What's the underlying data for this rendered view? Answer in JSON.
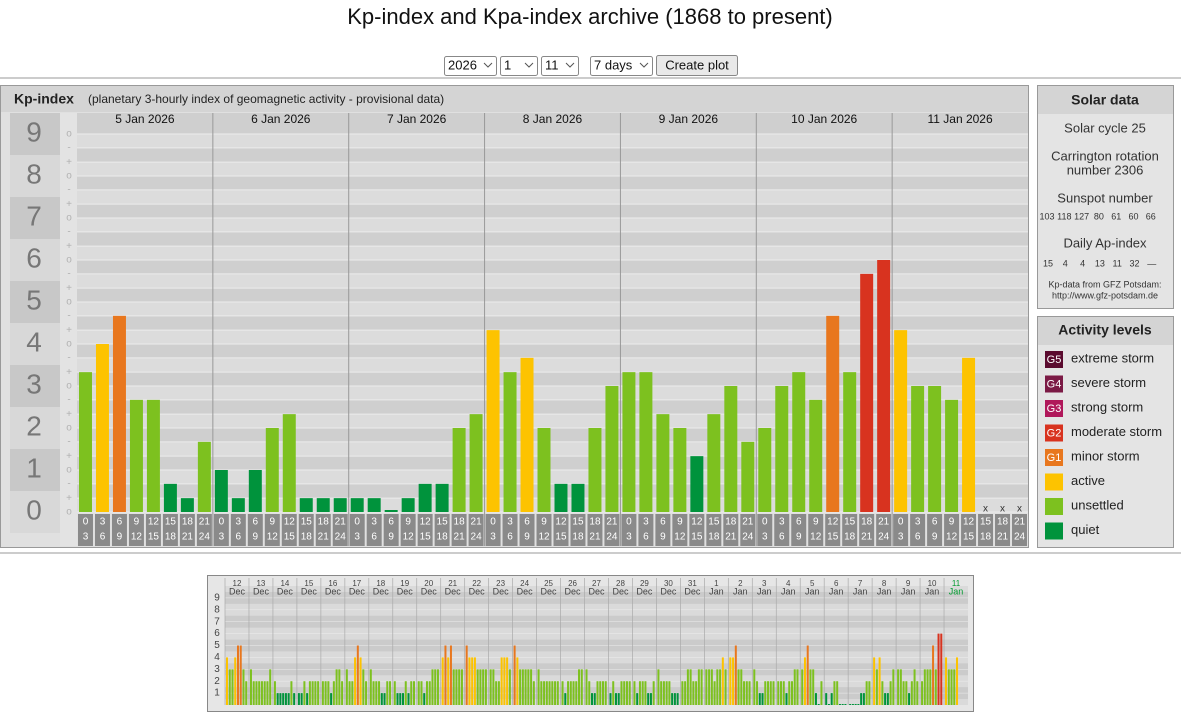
{
  "page": {
    "title": "Kp-index and Kpa-index archive (1868 to present)",
    "controls": {
      "year": "2026",
      "month": "1",
      "day": "11",
      "span": "7 days",
      "button": "Create plot"
    }
  },
  "chart_data": [
    {
      "type": "bar",
      "title": "Kp-index",
      "subtitle": "(planetary 3-hourly index of geomagnetic activity - provisional data)",
      "days": [
        "5 Jan 2026",
        "6 Jan 2026",
        "7 Jan 2026",
        "8 Jan 2026",
        "9 Jan 2026",
        "10 Jan 2026",
        "11 Jan 2026"
      ],
      "hours": [
        [
          "0",
          "3"
        ],
        [
          "3",
          "6"
        ],
        [
          "6",
          "9"
        ],
        [
          "9",
          "12"
        ],
        [
          "12",
          "15"
        ],
        [
          "15",
          "18"
        ],
        [
          "18",
          "21"
        ],
        [
          "21",
          "24"
        ]
      ],
      "values": [
        [
          3.33,
          4,
          4.67,
          2.67,
          2.67,
          0.67,
          0.33,
          1.67
        ],
        [
          1,
          0.33,
          1,
          2,
          2.33,
          0.33,
          0.33,
          0.33
        ],
        [
          0.33,
          0.33,
          0,
          0.33,
          0.67,
          0.67,
          2,
          2.33
        ],
        [
          4.33,
          3.33,
          3.67,
          2,
          0.67,
          0.67,
          2,
          3
        ],
        [
          3.33,
          3.33,
          2.33,
          2,
          1.33,
          2.33,
          3,
          1.67
        ],
        [
          2,
          3,
          3.33,
          2.67,
          4.67,
          3.33,
          5.67,
          6
        ],
        [
          4.33,
          3,
          3,
          2.67,
          3.67,
          null,
          null,
          null
        ]
      ],
      "colors": [
        [
          "#7dc11f",
          "#fdc300",
          "#e8771e",
          "#7dc11f",
          "#7dc11f",
          "#00933c",
          "#00933c",
          "#7dc11f"
        ],
        [
          "#00933c",
          "#00933c",
          "#00933c",
          "#7dc11f",
          "#7dc11f",
          "#00933c",
          "#00933c",
          "#00933c"
        ],
        [
          "#00933c",
          "#00933c",
          "#00933c",
          "#00933c",
          "#00933c",
          "#00933c",
          "#7dc11f",
          "#7dc11f"
        ],
        [
          "#fdc300",
          "#7dc11f",
          "#fdc300",
          "#7dc11f",
          "#00933c",
          "#00933c",
          "#7dc11f",
          "#7dc11f"
        ],
        [
          "#7dc11f",
          "#7dc11f",
          "#7dc11f",
          "#7dc11f",
          "#00933c",
          "#7dc11f",
          "#7dc11f",
          "#7dc11f"
        ],
        [
          "#7dc11f",
          "#7dc11f",
          "#7dc11f",
          "#7dc11f",
          "#e8771e",
          "#7dc11f",
          "#d8331f",
          "#d8331f"
        ],
        [
          "#fdc300",
          "#7dc11f",
          "#7dc11f",
          "#7dc11f",
          "#fdc300",
          null,
          null,
          null
        ]
      ],
      "missing_label": "x",
      "ylim": [
        0,
        9.5
      ],
      "yticks": [
        0,
        1,
        2,
        3,
        4,
        5,
        6,
        7,
        8,
        9
      ],
      "yminor": [
        {
          "value": 0,
          "label": "o"
        },
        {
          "value": 0.33,
          "label": "+"
        },
        {
          "value": 0.67,
          "label": "-"
        },
        {
          "value": 1,
          "label": "o"
        },
        {
          "value": 1.33,
          "label": "+"
        },
        {
          "value": 1.67,
          "label": "-"
        },
        {
          "value": 2,
          "label": "o"
        },
        {
          "value": 2.33,
          "label": "+"
        },
        {
          "value": 2.67,
          "label": "-"
        },
        {
          "value": 3,
          "label": "o"
        },
        {
          "value": 3.33,
          "label": "+"
        },
        {
          "value": 3.67,
          "label": "-"
        },
        {
          "value": 4,
          "label": "o"
        },
        {
          "value": 4.33,
          "label": "+"
        },
        {
          "value": 4.67,
          "label": "-"
        },
        {
          "value": 5,
          "label": "o"
        },
        {
          "value": 5.33,
          "label": "+"
        },
        {
          "value": 5.67,
          "label": "-"
        },
        {
          "value": 6,
          "label": "o"
        },
        {
          "value": 6.33,
          "label": "+"
        },
        {
          "value": 6.67,
          "label": "-"
        },
        {
          "value": 7,
          "label": "o"
        },
        {
          "value": 7.33,
          "label": "+"
        },
        {
          "value": 7.67,
          "label": "-"
        },
        {
          "value": 8,
          "label": "o"
        },
        {
          "value": 8.33,
          "label": "+"
        },
        {
          "value": 8.67,
          "label": "-"
        },
        {
          "value": 9,
          "label": "o"
        }
      ],
      "grid": true
    },
    {
      "type": "bar",
      "days": [
        [
          "12",
          "Dec"
        ],
        [
          "13",
          "Dec"
        ],
        [
          "14",
          "Dec"
        ],
        [
          "15",
          "Dec"
        ],
        [
          "16",
          "Dec"
        ],
        [
          "17",
          "Dec"
        ],
        [
          "18",
          "Dec"
        ],
        [
          "19",
          "Dec"
        ],
        [
          "20",
          "Dec"
        ],
        [
          "21",
          "Dec"
        ],
        [
          "22",
          "Dec"
        ],
        [
          "23",
          "Dec"
        ],
        [
          "24",
          "Dec"
        ],
        [
          "25",
          "Dec"
        ],
        [
          "26",
          "Dec"
        ],
        [
          "27",
          "Dec"
        ],
        [
          "28",
          "Dec"
        ],
        [
          "29",
          "Dec"
        ],
        [
          "30",
          "Dec"
        ],
        [
          "31",
          "Dec"
        ],
        [
          "1",
          "Jan"
        ],
        [
          "2",
          "Jan"
        ],
        [
          "3",
          "Jan"
        ],
        [
          "4",
          "Jan"
        ],
        [
          "5",
          "Jan"
        ],
        [
          "6",
          "Jan"
        ],
        [
          "7",
          "Jan"
        ],
        [
          "8",
          "Jan"
        ],
        [
          "9",
          "Jan"
        ],
        [
          "10",
          "Jan"
        ],
        [
          "11",
          "Jan"
        ]
      ],
      "values": [
        [
          4,
          3,
          3,
          4,
          5,
          5,
          3,
          2
        ],
        [
          3,
          2,
          2,
          2,
          2,
          2,
          2,
          3
        ],
        [
          2,
          1,
          1,
          1,
          1,
          1,
          2,
          1
        ],
        [
          1,
          1,
          2,
          1,
          2,
          2,
          2,
          2
        ],
        [
          2,
          2,
          2,
          1,
          2,
          3,
          3,
          2
        ],
        [
          3,
          2,
          2,
          4,
          5,
          4,
          3,
          2
        ],
        [
          3,
          2,
          2,
          2,
          1,
          1,
          2,
          2
        ],
        [
          2,
          1,
          1,
          1,
          2,
          1,
          2,
          2
        ],
        [
          2,
          2,
          1,
          2,
          2,
          3,
          3,
          3
        ],
        [
          4,
          5,
          4,
          5,
          3,
          3,
          3,
          3
        ],
        [
          5,
          4,
          4,
          4,
          3,
          3,
          3,
          3
        ],
        [
          3,
          3,
          2,
          2,
          4,
          4,
          4,
          3
        ],
        [
          5,
          4,
          3,
          3,
          3,
          3,
          3,
          2
        ],
        [
          3,
          2,
          2,
          2,
          2,
          2,
          2,
          2
        ],
        [
          2,
          1,
          2,
          2,
          2,
          2,
          3,
          3
        ],
        [
          3,
          2,
          1,
          1,
          2,
          2,
          2,
          2
        ],
        [
          1,
          2,
          1,
          1,
          2,
          2,
          2,
          2
        ],
        [
          2,
          1,
          2,
          2,
          2,
          1,
          1,
          2
        ],
        [
          3,
          2,
          2,
          2,
          2,
          1,
          1,
          1
        ],
        [
          2,
          2,
          3,
          3,
          2,
          2,
          3,
          3
        ],
        [
          3,
          3,
          3,
          2,
          3,
          3,
          4,
          3
        ],
        [
          4,
          4,
          5,
          3,
          3,
          2,
          2,
          2
        ],
        [
          3,
          2,
          1,
          1,
          2,
          2,
          2,
          2
        ],
        [
          2,
          2,
          2,
          1,
          2,
          2,
          3,
          3
        ],
        [
          3,
          4,
          5,
          3,
          3,
          1,
          0,
          2
        ],
        [
          1,
          0,
          1,
          2,
          2,
          0,
          0,
          0
        ],
        [
          0,
          0,
          0,
          0,
          1,
          1,
          2,
          2
        ],
        [
          4,
          3,
          4,
          2,
          1,
          1,
          2,
          3
        ],
        [
          3,
          3,
          2,
          2,
          1,
          2,
          3,
          2
        ],
        [
          2,
          3,
          3,
          3,
          5,
          3,
          6,
          6
        ],
        [
          4,
          3,
          3,
          3,
          4,
          null,
          null,
          null
        ]
      ],
      "level_colors": [
        "#00933c",
        "#00933c",
        "#7dc11f",
        "#7dc11f",
        "#fdc300",
        "#e8771e",
        "#d8331f",
        "#d8331f",
        "#b0175a",
        "#5a0a2e"
      ],
      "current_color": "#009a2e",
      "ylim": [
        0,
        10
      ],
      "yticks": [
        1,
        2,
        3,
        4,
        5,
        6,
        7,
        8,
        9
      ],
      "grid": true
    }
  ],
  "solar": {
    "title": "Solar data",
    "cycle": "Solar cycle 25",
    "carrington": [
      "Carrington rotation",
      "number 2306"
    ],
    "sunspot_label": "Sunspot number",
    "sunspot": [
      103,
      118,
      127,
      80,
      61,
      60,
      66
    ],
    "ap_label": "Daily Ap-index",
    "ap": [
      15,
      4,
      4,
      13,
      11,
      32,
      null
    ],
    "ap_missing": "—",
    "source": "Kp-data from GFZ Potsdam:",
    "url": "http://www.gfz-potsdam.de"
  },
  "activity": {
    "title": "Activity levels",
    "levels": [
      {
        "code": "G5",
        "name": "extreme storm",
        "color": "#5a0a2e"
      },
      {
        "code": "G4",
        "name": "severe storm",
        "color": "#7b1a45"
      },
      {
        "code": "G3",
        "name": "strong storm",
        "color": "#b0175a"
      },
      {
        "code": "G2",
        "name": "moderate storm",
        "color": "#d8331f"
      },
      {
        "code": "G1",
        "name": "minor storm",
        "color": "#e8771e"
      },
      {
        "code": null,
        "name": "active",
        "color": "#fdc300"
      },
      {
        "code": null,
        "name": "unsettled",
        "color": "#7dc11f"
      },
      {
        "code": null,
        "name": "quiet",
        "color": "#00933c"
      }
    ]
  }
}
